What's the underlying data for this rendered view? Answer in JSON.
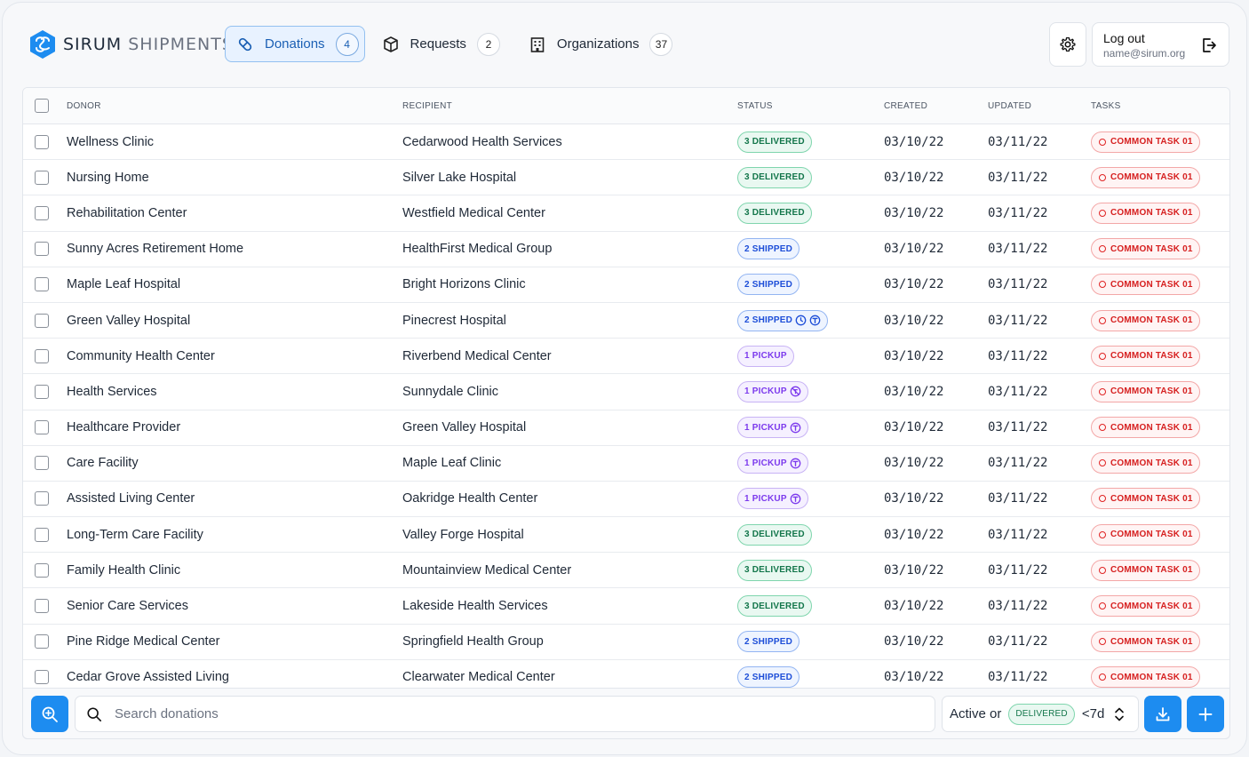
{
  "brand": {
    "name_bold": "SIRUM",
    "name_light": "SHIPMENTS"
  },
  "nav": [
    {
      "label": "Donations",
      "count": "4",
      "icon": "pill-icon",
      "active": true
    },
    {
      "label": "Requests",
      "count": "2",
      "icon": "box-icon",
      "active": false
    },
    {
      "label": "Organizations",
      "count": "37",
      "icon": "building-icon",
      "active": false
    }
  ],
  "account": {
    "logout_label": "Log out",
    "email": "name@sirum.org"
  },
  "table": {
    "headers": {
      "donor": "DONOR",
      "recipient": "RECIPIENT",
      "status": "STATUS",
      "created": "CREATED",
      "updated": "UPDATED",
      "tasks": "TASKS"
    },
    "rows": [
      {
        "donor": "Wellness Clinic",
        "recipient": "Cedarwood Health Services",
        "status": "3 DELIVERED",
        "status_type": "delivered",
        "icons": [],
        "created": "03/10/22",
        "updated": "03/11/22",
        "task": "COMMON TASK 01"
      },
      {
        "donor": "Nursing Home",
        "recipient": "Silver Lake Hospital",
        "status": "3 DELIVERED",
        "status_type": "delivered",
        "icons": [],
        "created": "03/10/22",
        "updated": "03/11/22",
        "task": "COMMON TASK 01"
      },
      {
        "donor": "Rehabilitation Center",
        "recipient": "Westfield Medical Center",
        "status": "3 DELIVERED",
        "status_type": "delivered",
        "icons": [],
        "created": "03/10/22",
        "updated": "03/11/22",
        "task": "COMMON TASK 01"
      },
      {
        "donor": "Sunny Acres Retirement Home",
        "recipient": "HealthFirst Medical Group",
        "status": "2 SHIPPED",
        "status_type": "shipped",
        "icons": [],
        "created": "03/10/22",
        "updated": "03/11/22",
        "task": "COMMON TASK 01"
      },
      {
        "donor": "Maple Leaf Hospital",
        "recipient": "Bright Horizons Clinic",
        "status": "2 SHIPPED",
        "status_type": "shipped",
        "icons": [],
        "created": "03/10/22",
        "updated": "03/11/22",
        "task": "COMMON TASK 01"
      },
      {
        "donor": "Green Valley Hospital",
        "recipient": "Pinecrest Hospital",
        "status": "2 SHIPPED",
        "status_type": "shipped",
        "icons": [
          "clock-icon",
          "truck-badge-icon"
        ],
        "created": "03/10/22",
        "updated": "03/11/22",
        "task": "COMMON TASK 01"
      },
      {
        "donor": "Community Health Center",
        "recipient": "Riverbend Medical Center",
        "status": "1 PICKUP",
        "status_type": "pickup",
        "icons": [],
        "created": "03/10/22",
        "updated": "03/11/22",
        "task": "COMMON TASK 01"
      },
      {
        "donor": "Health Services",
        "recipient": "Sunnydale Clinic",
        "status": "1 PICKUP",
        "status_type": "pickup",
        "icons": [
          "no-pickup-icon"
        ],
        "created": "03/10/22",
        "updated": "03/11/22",
        "task": "COMMON TASK 01"
      },
      {
        "donor": "Healthcare Provider",
        "recipient": "Green Valley Hospital",
        "status": "1 PICKUP",
        "status_type": "pickup",
        "icons": [
          "truck-badge-icon"
        ],
        "created": "03/10/22",
        "updated": "03/11/22",
        "task": "COMMON TASK 01"
      },
      {
        "donor": "Care Facility",
        "recipient": "Maple Leaf Clinic",
        "status": "1 PICKUP",
        "status_type": "pickup",
        "icons": [
          "truck-badge-icon"
        ],
        "created": "03/10/22",
        "updated": "03/11/22",
        "task": "COMMON TASK 01"
      },
      {
        "donor": "Assisted Living Center",
        "recipient": "Oakridge Health Center",
        "status": "1 PICKUP",
        "status_type": "pickup",
        "icons": [
          "truck-badge-icon"
        ],
        "created": "03/10/22",
        "updated": "03/11/22",
        "task": "COMMON TASK 01"
      },
      {
        "donor": "Long-Term Care Facility",
        "recipient": "Valley Forge Hospital",
        "status": "3 DELIVERED",
        "status_type": "delivered",
        "icons": [],
        "created": "03/10/22",
        "updated": "03/11/22",
        "task": "COMMON TASK 01"
      },
      {
        "donor": "Family Health Clinic",
        "recipient": "Mountainview Medical Center",
        "status": "3 DELIVERED",
        "status_type": "delivered",
        "icons": [],
        "created": "03/10/22",
        "updated": "03/11/22",
        "task": "COMMON TASK 01"
      },
      {
        "donor": "Senior Care Services",
        "recipient": "Lakeside Health Services",
        "status": "3 DELIVERED",
        "status_type": "delivered",
        "icons": [],
        "created": "03/10/22",
        "updated": "03/11/22",
        "task": "COMMON TASK 01"
      },
      {
        "donor": "Pine Ridge Medical Center",
        "recipient": "Springfield Health Group",
        "status": "2 SHIPPED",
        "status_type": "shipped",
        "icons": [],
        "created": "03/10/22",
        "updated": "03/11/22",
        "task": "COMMON TASK 01"
      },
      {
        "donor": "Cedar Grove Assisted Living",
        "recipient": "Clearwater Medical Center",
        "status": "2 SHIPPED",
        "status_type": "shipped",
        "icons": [],
        "created": "03/10/22",
        "updated": "03/11/22",
        "task": "COMMON TASK 01"
      }
    ]
  },
  "search": {
    "placeholder": "Search donations",
    "value": ""
  },
  "filter": {
    "prefix": "Active or",
    "badge": "DELIVERED",
    "range": "<7d"
  },
  "colors": {
    "accent": "#1d8cf0",
    "delivered": "#13764b",
    "shipped": "#1d4ed8",
    "pickup": "#7c3aed",
    "task": "#d61f1f"
  }
}
